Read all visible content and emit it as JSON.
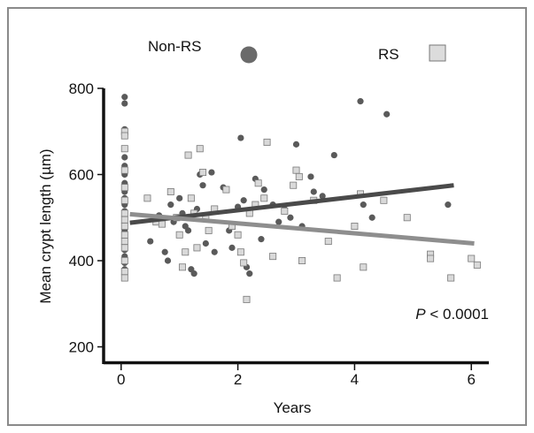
{
  "chart_data": {
    "type": "scatter",
    "xlabel": "Years",
    "ylabel": "Mean crypt length (µm)",
    "xlim": [
      -0.3,
      6.3
    ],
    "ylim": [
      160,
      800
    ],
    "xticks": [
      0,
      2,
      4,
      6
    ],
    "yticks": [
      200,
      400,
      600,
      800
    ],
    "annotation": {
      "italic": "P",
      "rest": " < 0.0001"
    },
    "legend_position": "top",
    "series": [
      {
        "name": "Non-RS",
        "marker": "circle",
        "color": "#5a5a5a",
        "points": [
          [
            0.0,
            780
          ],
          [
            0.0,
            765
          ],
          [
            0.0,
            705
          ],
          [
            0.0,
            640
          ],
          [
            0.0,
            620
          ],
          [
            0.0,
            600
          ],
          [
            0.0,
            580
          ],
          [
            0.0,
            560
          ],
          [
            0.0,
            545
          ],
          [
            0.0,
            530
          ],
          [
            0.0,
            515
          ],
          [
            0.0,
            500
          ],
          [
            0.0,
            485
          ],
          [
            0.0,
            470
          ],
          [
            0.0,
            455
          ],
          [
            0.0,
            440
          ],
          [
            0.0,
            425
          ],
          [
            0.0,
            410
          ],
          [
            0.0,
            395
          ],
          [
            0.0,
            380
          ],
          [
            0.5,
            445
          ],
          [
            0.65,
            505
          ],
          [
            0.75,
            420
          ],
          [
            0.8,
            400
          ],
          [
            0.85,
            530
          ],
          [
            0.9,
            490
          ],
          [
            1.0,
            545
          ],
          [
            1.05,
            510
          ],
          [
            1.1,
            480
          ],
          [
            1.15,
            470
          ],
          [
            1.2,
            380
          ],
          [
            1.25,
            370
          ],
          [
            1.3,
            520
          ],
          [
            1.35,
            600
          ],
          [
            1.4,
            575
          ],
          [
            1.45,
            440
          ],
          [
            1.55,
            605
          ],
          [
            1.6,
            420
          ],
          [
            1.75,
            570
          ],
          [
            1.85,
            470
          ],
          [
            1.9,
            430
          ],
          [
            2.0,
            525
          ],
          [
            2.05,
            685
          ],
          [
            2.1,
            540
          ],
          [
            2.15,
            385
          ],
          [
            2.2,
            370
          ],
          [
            2.3,
            590
          ],
          [
            2.4,
            450
          ],
          [
            2.45,
            565
          ],
          [
            2.6,
            530
          ],
          [
            2.7,
            490
          ],
          [
            2.8,
            520
          ],
          [
            2.9,
            500
          ],
          [
            3.0,
            670
          ],
          [
            3.1,
            480
          ],
          [
            3.25,
            595
          ],
          [
            3.3,
            560
          ],
          [
            3.45,
            550
          ],
          [
            3.65,
            645
          ],
          [
            4.1,
            770
          ],
          [
            4.15,
            530
          ],
          [
            4.3,
            500
          ],
          [
            4.55,
            740
          ],
          [
            5.6,
            530
          ]
        ]
      },
      {
        "name": "RS",
        "marker": "square",
        "color": "#d9d9d9",
        "points": [
          [
            0.0,
            700
          ],
          [
            0.0,
            690
          ],
          [
            0.0,
            660
          ],
          [
            0.0,
            610
          ],
          [
            0.0,
            570
          ],
          [
            0.0,
            540
          ],
          [
            0.0,
            510
          ],
          [
            0.0,
            495
          ],
          [
            0.0,
            480
          ],
          [
            0.0,
            460
          ],
          [
            0.0,
            445
          ],
          [
            0.0,
            430
          ],
          [
            0.0,
            400
          ],
          [
            0.0,
            375
          ],
          [
            0.0,
            360
          ],
          [
            0.45,
            545
          ],
          [
            0.6,
            490
          ],
          [
            0.7,
            485
          ],
          [
            0.85,
            560
          ],
          [
            0.95,
            500
          ],
          [
            1.0,
            460
          ],
          [
            1.05,
            385
          ],
          [
            1.1,
            420
          ],
          [
            1.15,
            645
          ],
          [
            1.2,
            545
          ],
          [
            1.25,
            510
          ],
          [
            1.3,
            430
          ],
          [
            1.35,
            660
          ],
          [
            1.4,
            605
          ],
          [
            1.45,
            500
          ],
          [
            1.5,
            470
          ],
          [
            1.6,
            520
          ],
          [
            1.8,
            565
          ],
          [
            1.9,
            480
          ],
          [
            2.0,
            460
          ],
          [
            2.05,
            420
          ],
          [
            2.1,
            395
          ],
          [
            2.15,
            310
          ],
          [
            2.2,
            510
          ],
          [
            2.3,
            530
          ],
          [
            2.35,
            580
          ],
          [
            2.45,
            545
          ],
          [
            2.5,
            675
          ],
          [
            2.6,
            410
          ],
          [
            2.8,
            515
          ],
          [
            2.95,
            575
          ],
          [
            3.0,
            610
          ],
          [
            3.05,
            595
          ],
          [
            3.1,
            400
          ],
          [
            3.3,
            540
          ],
          [
            3.55,
            445
          ],
          [
            3.7,
            360
          ],
          [
            4.0,
            480
          ],
          [
            4.1,
            555
          ],
          [
            4.15,
            385
          ],
          [
            4.5,
            540
          ],
          [
            4.9,
            500
          ],
          [
            5.3,
            415
          ],
          [
            5.3,
            405
          ],
          [
            5.65,
            360
          ],
          [
            6.0,
            405
          ],
          [
            6.1,
            390
          ]
        ]
      }
    ],
    "trendlines": [
      {
        "series": "Non-RS",
        "color": "#4a4a4a",
        "x": [
          0.15,
          5.7
        ],
        "y": [
          488,
          575
        ]
      },
      {
        "series": "RS",
        "color": "#8e8e8e",
        "x": [
          0.15,
          6.05
        ],
        "y": [
          508,
          440
        ]
      }
    ]
  }
}
